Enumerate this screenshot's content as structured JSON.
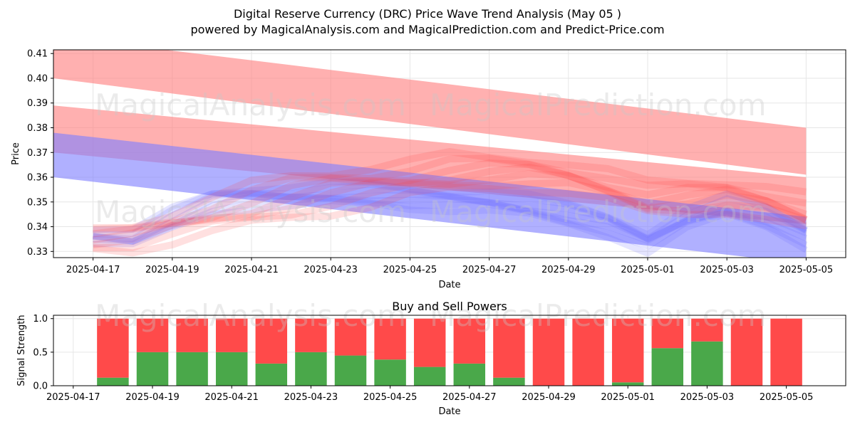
{
  "header": {
    "title": "Digital Reserve Currency (DRC) Price Wave Trend Analysis (May 05 )",
    "subtitle": "powered by MagicalAnalysis.com and MagicalPrediction.com and Predict-Price.com"
  },
  "watermarks": [
    "MagicalAnalysis.com",
    "MagicalPrediction.com"
  ],
  "colors": {
    "sell": "#ff4a4a",
    "buy": "#4aa84a",
    "bearish_band": "#ff8080",
    "bullish_band": "#8080ff",
    "grid": "#e6e6e6"
  },
  "chart_data": [
    {
      "type": "line",
      "title": "",
      "xlabel": "Date",
      "ylabel": "Price",
      "ylim": [
        0.3275,
        0.4115
      ],
      "xlim": [
        "2025-04-16",
        "2025-05-06"
      ],
      "x_ticks": [
        "2025-04-17",
        "2025-04-19",
        "2025-04-21",
        "2025-04-23",
        "2025-04-25",
        "2025-04-27",
        "2025-04-29",
        "2025-05-01",
        "2025-05-03",
        "2025-05-05"
      ],
      "y_ticks": [
        "0.33",
        "0.34",
        "0.35",
        "0.36",
        "0.37",
        "0.38",
        "0.39",
        "0.40",
        "0.41"
      ],
      "grid": true,
      "bands": [
        {
          "name": "upper-red-trend-band",
          "color": "red",
          "x": [
            "2025-04-16",
            "2025-05-05"
          ],
          "upper": [
            0.417,
            0.38
          ],
          "lower": [
            0.4,
            0.361
          ]
        },
        {
          "name": "middle-red-trend-band",
          "color": "red",
          "x": [
            "2025-04-16",
            "2025-05-05"
          ],
          "upper": [
            0.389,
            0.36
          ],
          "lower": [
            0.37,
            0.341
          ]
        },
        {
          "name": "blue-trend-band",
          "color": "blue",
          "x": [
            "2025-04-16",
            "2025-05-05"
          ],
          "upper": [
            0.378,
            0.344
          ],
          "lower": [
            0.36,
            0.325
          ]
        }
      ],
      "wave_series": {
        "dates": [
          "2025-04-17",
          "2025-04-18",
          "2025-04-19",
          "2025-04-20",
          "2025-04-21",
          "2025-04-22",
          "2025-04-23",
          "2025-04-24",
          "2025-04-25",
          "2025-04-26",
          "2025-04-27",
          "2025-04-28",
          "2025-04-29",
          "2025-04-30",
          "2025-05-01",
          "2025-05-02",
          "2025-05-03",
          "2025-05-04",
          "2025-05-05"
        ],
        "red_center": [
          0.335,
          0.336,
          0.34,
          0.344,
          0.348,
          0.352,
          0.355,
          0.357,
          0.359,
          0.361,
          0.362,
          0.362,
          0.36,
          0.356,
          0.351,
          0.352,
          0.353,
          0.35,
          0.345
        ],
        "red_spread": [
          0.004,
          0.005,
          0.006,
          0.007,
          0.008,
          0.008,
          0.008,
          0.008,
          0.007,
          0.007,
          0.006,
          0.006,
          0.006,
          0.006,
          0.006,
          0.006,
          0.006,
          0.007,
          0.007
        ],
        "blue_center": [
          0.336,
          0.335,
          0.343,
          0.35,
          0.352,
          0.352,
          0.353,
          0.353,
          0.352,
          0.351,
          0.35,
          0.348,
          0.345,
          0.341,
          0.334,
          0.343,
          0.348,
          0.344,
          0.336
        ],
        "blue_spread": [
          0.003,
          0.003,
          0.004,
          0.004,
          0.004,
          0.004,
          0.004,
          0.004,
          0.004,
          0.004,
          0.004,
          0.004,
          0.004,
          0.004,
          0.004,
          0.004,
          0.004,
          0.004,
          0.004
        ]
      }
    },
    {
      "type": "bar",
      "title": "Buy and Sell Powers",
      "xlabel": "Date",
      "ylabel": "Signal Strength",
      "ylim": [
        0.0,
        1.05
      ],
      "xlim": [
        "2025-04-17",
        "2025-05-06"
      ],
      "x_ticks": [
        "2025-04-17",
        "2025-04-19",
        "2025-04-21",
        "2025-04-23",
        "2025-04-25",
        "2025-04-27",
        "2025-04-29",
        "2025-05-01",
        "2025-05-03",
        "2025-05-05"
      ],
      "y_ticks": [
        "0.0",
        "0.5",
        "1.0"
      ],
      "grid": true,
      "stacked": true,
      "categories": [
        "2025-04-18",
        "2025-04-19",
        "2025-04-20",
        "2025-04-21",
        "2025-04-22",
        "2025-04-23",
        "2025-04-24",
        "2025-04-25",
        "2025-04-26",
        "2025-04-27",
        "2025-04-28",
        "2025-04-29",
        "2025-04-30",
        "2025-05-01",
        "2025-05-02",
        "2025-05-03",
        "2025-05-04",
        "2025-05-05"
      ],
      "series": [
        {
          "name": "Buy",
          "values": [
            0.12,
            0.5,
            0.5,
            0.5,
            0.33,
            0.5,
            0.45,
            0.39,
            0.28,
            0.33,
            0.12,
            0.0,
            0.0,
            0.05,
            0.56,
            0.66,
            0.0,
            0.0
          ]
        },
        {
          "name": "Sell",
          "values": [
            0.88,
            0.5,
            0.5,
            0.5,
            0.67,
            0.5,
            0.55,
            0.61,
            0.72,
            0.67,
            0.88,
            1.0,
            1.0,
            0.95,
            0.44,
            0.34,
            1.0,
            1.0
          ]
        }
      ]
    }
  ]
}
